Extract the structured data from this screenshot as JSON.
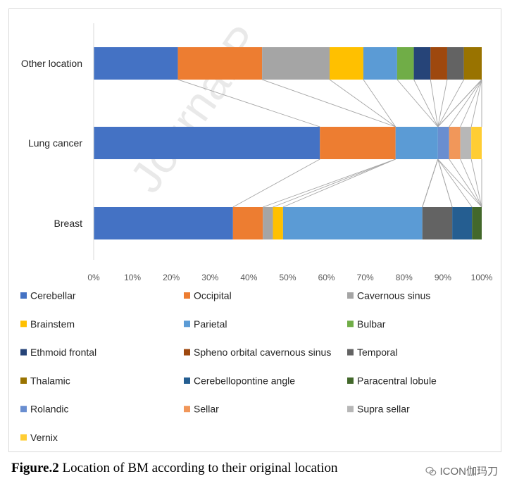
{
  "watermark": "Journal P",
  "caption": {
    "label": "Figure.2",
    "text": "Location of BM according to their original location"
  },
  "brand": {
    "text": "ICON伽玛刀",
    "icon": "wechat-icon"
  },
  "chart_data": {
    "type": "bar",
    "orientation": "horizontal",
    "stacked": "percent",
    "title": "",
    "xlabel": "",
    "ylabel": "",
    "xlim": [
      0,
      100
    ],
    "x_ticks": [
      "0%",
      "10%",
      "20%",
      "30%",
      "40%",
      "50%",
      "60%",
      "70%",
      "80%",
      "90%",
      "100%"
    ],
    "grid": false,
    "legend_position": "bottom",
    "categories": [
      "Other location",
      "Lung cancer",
      "Breast"
    ],
    "series": [
      {
        "name": "Cerebellar",
        "color": "#4472C4",
        "values": [
          21.7,
          58.3,
          35.9
        ]
      },
      {
        "name": "Occipital",
        "color": "#ED7D31",
        "values": [
          21.7,
          19.5,
          7.7
        ]
      },
      {
        "name": "Cavernous sinus",
        "color": "#A5A5A5",
        "values": [
          17.4,
          0,
          2.6
        ]
      },
      {
        "name": "Brainstem",
        "color": "#FFC000",
        "values": [
          8.7,
          0,
          2.6
        ]
      },
      {
        "name": "Parietal",
        "color": "#5B9BD5",
        "values": [
          8.7,
          10.9,
          35.9
        ]
      },
      {
        "name": "Bulbar",
        "color": "#70AD47",
        "values": [
          4.3,
          0,
          0
        ]
      },
      {
        "name": "Ethmoid frontal",
        "color": "#264478",
        "values": [
          4.3,
          0,
          0
        ]
      },
      {
        "name": "Spheno orbital cavernous sinus",
        "color": "#9E480E",
        "values": [
          4.3,
          0,
          0
        ]
      },
      {
        "name": "Temporal",
        "color": "#636363",
        "values": [
          4.3,
          0,
          7.7
        ]
      },
      {
        "name": "Thalamic",
        "color": "#997300",
        "values": [
          4.6,
          0,
          0
        ]
      },
      {
        "name": "Cerebellopontine angle",
        "color": "#255E91",
        "values": [
          0,
          0,
          5.1
        ]
      },
      {
        "name": "Paracentral lobule",
        "color": "#43682B",
        "values": [
          0,
          0,
          2.5
        ]
      },
      {
        "name": "Rolandic",
        "color": "#698ED0",
        "values": [
          0,
          2.9,
          0
        ]
      },
      {
        "name": "Sellar",
        "color": "#F1975A",
        "values": [
          0,
          2.9,
          0
        ]
      },
      {
        "name": "Supra sellar",
        "color": "#B7B7B7",
        "values": [
          0,
          2.8,
          0
        ]
      },
      {
        "name": "Vernix",
        "color": "#FFCD33",
        "values": [
          0,
          2.7,
          0
        ]
      }
    ]
  }
}
